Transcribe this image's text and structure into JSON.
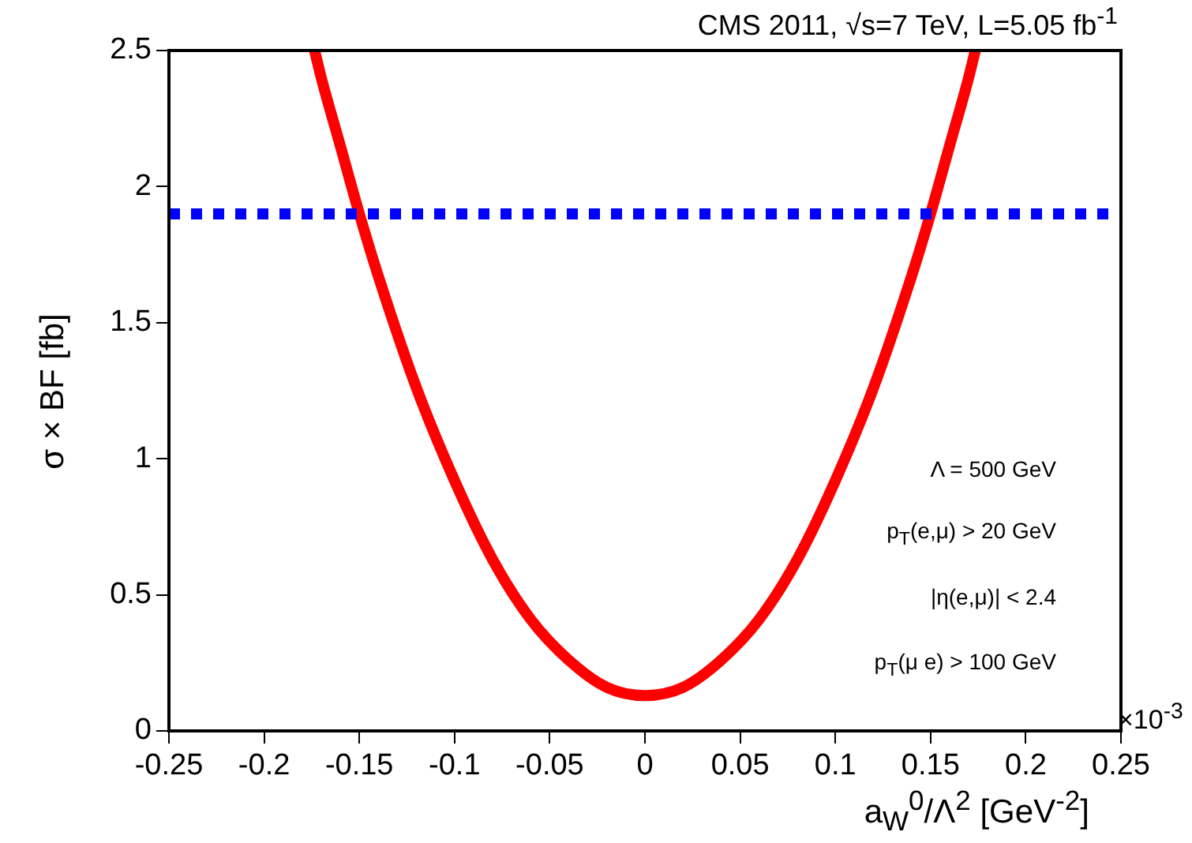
{
  "chart_data": {
    "type": "line",
    "title": "CMS 2011, √s=7 TeV, L=5.05 fb$^{-1}$",
    "xlabel": "a$_{W}$$^{0}$/Λ$^{2}$ [GeV$^{-2}$]",
    "ylabel": "σ × BF [fb]",
    "x": [
      -0.1735,
      -0.17,
      -0.16,
      -0.15,
      -0.14,
      -0.12,
      -0.1,
      -0.08,
      -0.06,
      -0.04,
      -0.02,
      0,
      0.02,
      0.04,
      0.06,
      0.08,
      0.1,
      0.12,
      0.14,
      0.15,
      0.16,
      0.17,
      0.1735
    ],
    "series": [
      {
        "color": "#ff0000",
        "values": [
          2.5,
          2.4,
          2.15,
          1.9,
          1.67,
          1.26,
          0.92,
          0.63,
          0.41,
          0.26,
          0.16,
          0.13,
          0.16,
          0.26,
          0.41,
          0.63,
          0.92,
          1.26,
          1.67,
          1.9,
          2.15,
          2.4,
          2.5
        ]
      }
    ],
    "xlim": [
      -0.25,
      0.25
    ],
    "xticks": [
      -0.25,
      -0.2,
      -0.15,
      -0.1,
      -0.05,
      0,
      0.05,
      0.1,
      0.15,
      0.2,
      0.25
    ],
    "ylim": [
      0,
      2.5
    ],
    "yticks": [
      0,
      0.5,
      1,
      1.5,
      2,
      2.5
    ],
    "ref_lines": [
      {
        "axis": "y",
        "value": 1.9,
        "color": "#0000ff",
        "line_style": "dotted"
      }
    ],
    "annotations": [
      "×10$^{-3}$",
      "Λ = 500 GeV",
      "p$_{T}$(e,μ) > 20 GeV",
      "|η(e,μ)| < 2.4",
      "p$_{T}$(μ e) > 100 GeV"
    ]
  }
}
